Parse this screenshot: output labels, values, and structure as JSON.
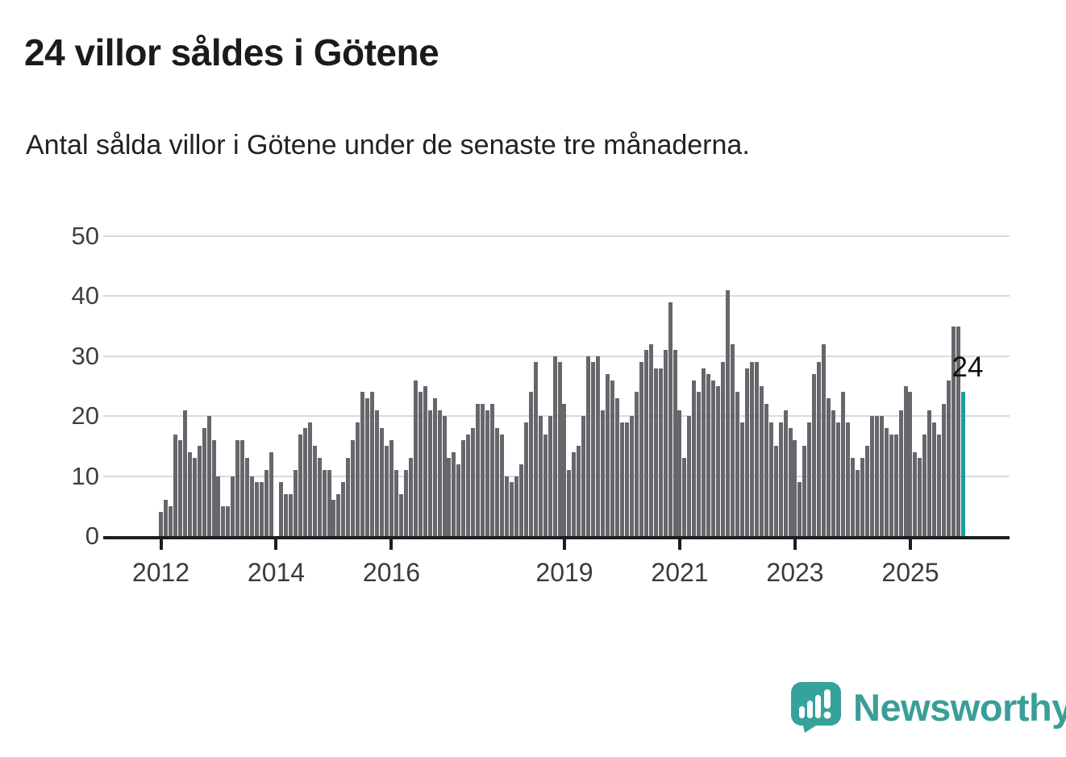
{
  "header": {
    "title": "24 villor såldes i Götene",
    "subtitle": "Antal sålda villor i Götene under de senaste tre månaderna."
  },
  "chart_data": {
    "type": "bar",
    "title": "24 villor såldes i Götene",
    "subtitle": "Antal sålda villor i Götene under de senaste tre månaderna.",
    "frequency": "monthly-rolling-3-month-sum",
    "start_year_tick": "2012",
    "ylim": [
      0,
      50
    ],
    "yticks": [
      0,
      10,
      20,
      30,
      40,
      50
    ],
    "grid": true,
    "legend": "none",
    "bar_color": "#66666c",
    "highlight_color": "#179ea1",
    "annotation": "24",
    "annotated_last_value": 24,
    "x_ticks": [
      {
        "label": "2012",
        "index": 0
      },
      {
        "label": "2014",
        "index": 24
      },
      {
        "label": "2016",
        "index": 48
      },
      {
        "label": "2019",
        "index": 84
      },
      {
        "label": "2021",
        "index": 108
      },
      {
        "label": "2023",
        "index": 132
      },
      {
        "label": "2025",
        "index": 156
      }
    ],
    "values": [
      4,
      6,
      5,
      17,
      16,
      21,
      14,
      13,
      15,
      18,
      20,
      16,
      10,
      5,
      5,
      10,
      16,
      16,
      13,
      10,
      9,
      9,
      11,
      14,
      0,
      9,
      7,
      7,
      11,
      17,
      18,
      19,
      15,
      13,
      11,
      11,
      6,
      7,
      9,
      13,
      16,
      19,
      24,
      23,
      24,
      21,
      18,
      15,
      16,
      11,
      7,
      11,
      13,
      26,
      24,
      25,
      21,
      23,
      21,
      20,
      13,
      14,
      12,
      16,
      17,
      18,
      22,
      22,
      21,
      22,
      18,
      17,
      10,
      9,
      10,
      12,
      19,
      24,
      29,
      20,
      17,
      20,
      30,
      29,
      22,
      11,
      14,
      15,
      20,
      30,
      29,
      30,
      21,
      27,
      26,
      23,
      19,
      19,
      20,
      24,
      29,
      31,
      32,
      28,
      28,
      31,
      39,
      31,
      21,
      13,
      20,
      26,
      24,
      28,
      27,
      26,
      25,
      29,
      41,
      32,
      24,
      19,
      28,
      29,
      29,
      25,
      22,
      19,
      15,
      19,
      21,
      18,
      16,
      9,
      15,
      19,
      27,
      29,
      32,
      23,
      21,
      19,
      24,
      19,
      13,
      11,
      13,
      15,
      20,
      20,
      20,
      18,
      17,
      17,
      21,
      25,
      24,
      14,
      13,
      17,
      21,
      19,
      17,
      22,
      26,
      35,
      35,
      24
    ]
  },
  "footer": {
    "brand": "Newsworthy",
    "brand_color": "#3a9e98",
    "logo_icon": "bar-chart-speech-bubble-icon"
  }
}
